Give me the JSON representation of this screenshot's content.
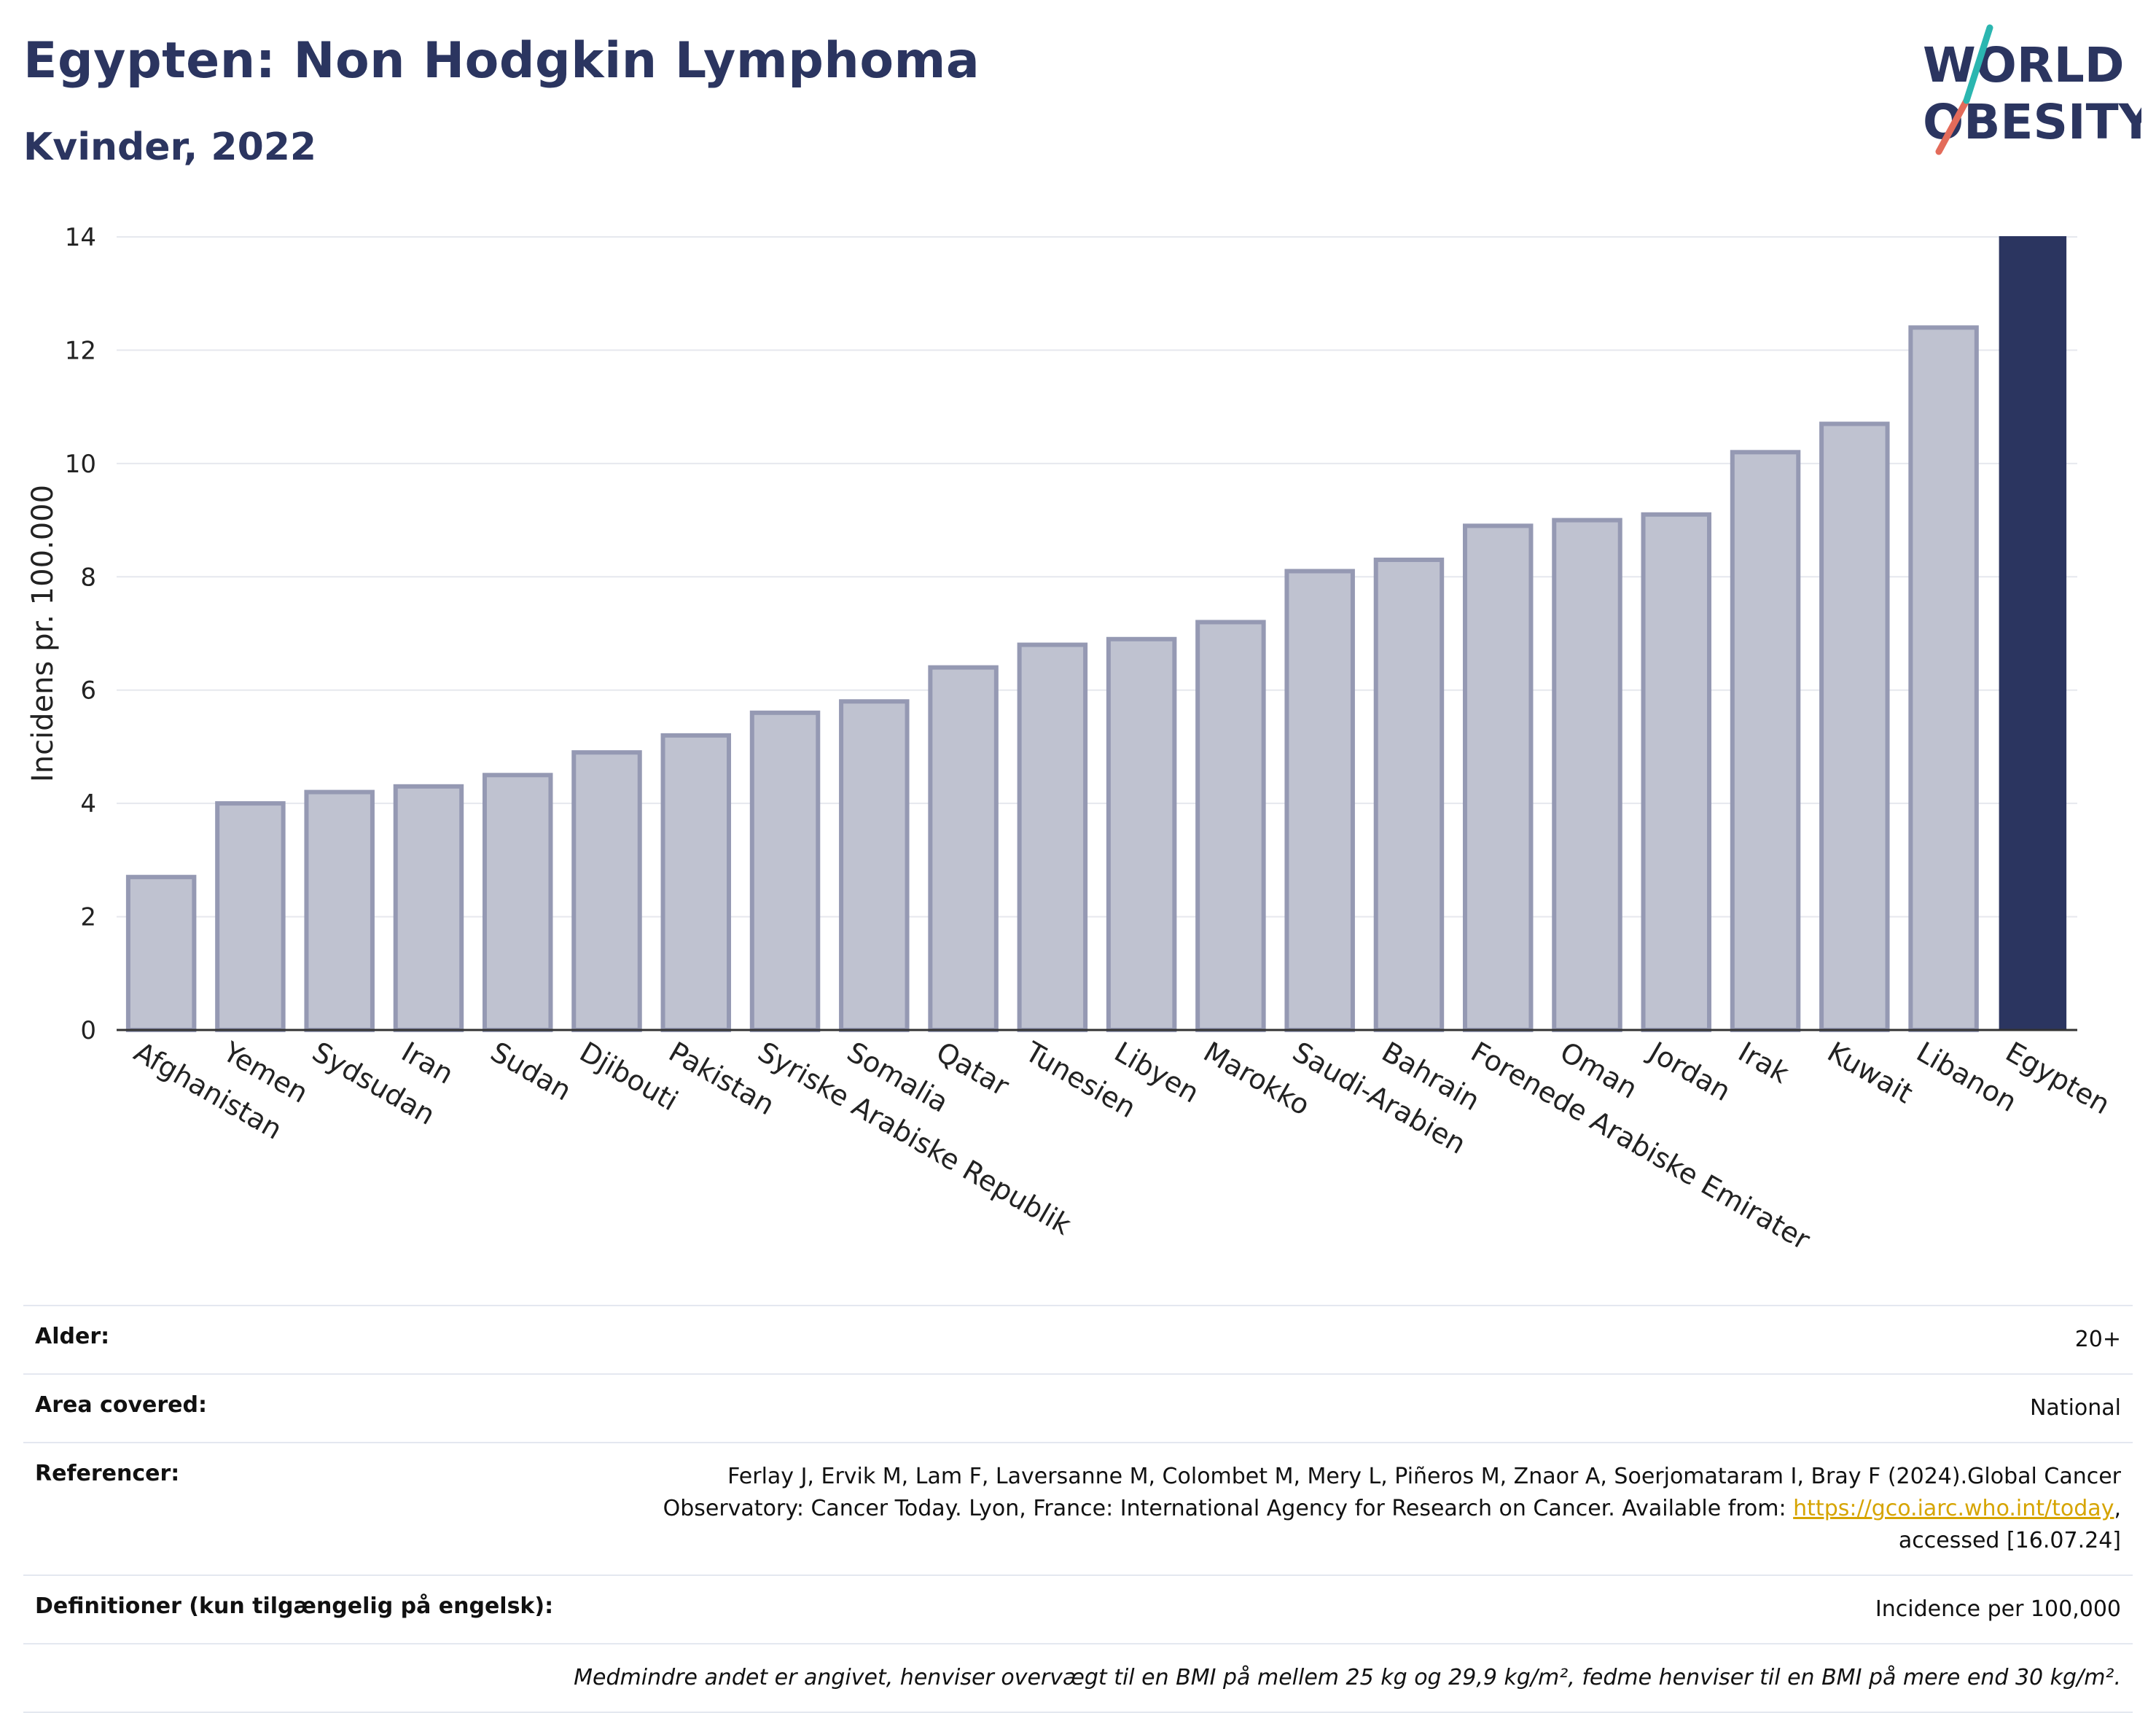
{
  "title": "Egypten: Non Hodgkin Lymphoma",
  "subtitle": "Kvinder, 2022",
  "logo": {
    "line1": "WORLD",
    "line2": "OBESITY"
  },
  "colors": {
    "bar": "#bfc2d0",
    "bar_border": "#9599b3",
    "highlight": "#2b3560",
    "grid": "#e6e8ee",
    "axis": "#333333"
  },
  "chart_data": {
    "type": "bar",
    "ylabel": "Incidens pr. 100.000",
    "ylim": [
      0,
      14
    ],
    "yticks": [
      0,
      2,
      4,
      6,
      8,
      10,
      12,
      14
    ],
    "grid": true,
    "categories": [
      "Afghanistan",
      "Yemen",
      "Sydsudan",
      "Iran",
      "Sudan",
      "Djibouti",
      "Pakistan",
      "Syriske Arabiske Republik",
      "Somalia",
      "Qatar",
      "Tunesien",
      "Libyen",
      "Marokko",
      "Saudi-Arabien",
      "Bahrain",
      "Forenede Arabiske Emirater",
      "Oman",
      "Jordan",
      "Irak",
      "Kuwait",
      "Libanon",
      "Egypten"
    ],
    "values": [
      2.7,
      4.0,
      4.2,
      4.3,
      4.5,
      4.9,
      5.2,
      5.6,
      5.8,
      6.4,
      6.8,
      6.9,
      7.2,
      8.1,
      8.3,
      8.9,
      9.0,
      9.1,
      10.2,
      10.7,
      12.4,
      14.0
    ],
    "highlight": "Egypten"
  },
  "info": {
    "age_label": "Alder:",
    "age_value": "20+",
    "area_label": "Area covered:",
    "area_value": "National",
    "ref_label": "Referencer:",
    "ref_text_1": "Ferlay J, Ervik M, Lam F, Laversanne M, Colombet M, Mery L, Piñeros M, Znaor A, Soerjomataram I, Bray F (2024).Global Cancer Observatory: Cancer Today. Lyon, France: International Agency for Research on Cancer. Available from: ",
    "ref_link": "https://gco.iarc.who.int/today",
    "ref_text_2": ", accessed [16.07.24]",
    "def_label": "Definitioner (kun tilgængelig på engelsk):",
    "def_value": "Incidence per 100,000",
    "note": "Medmindre andet er angivet, henviser overvægt til en BMI på mellem 25 kg og 29,9 kg/m², fedme henviser til en BMI på mere end 30 kg/m²."
  }
}
